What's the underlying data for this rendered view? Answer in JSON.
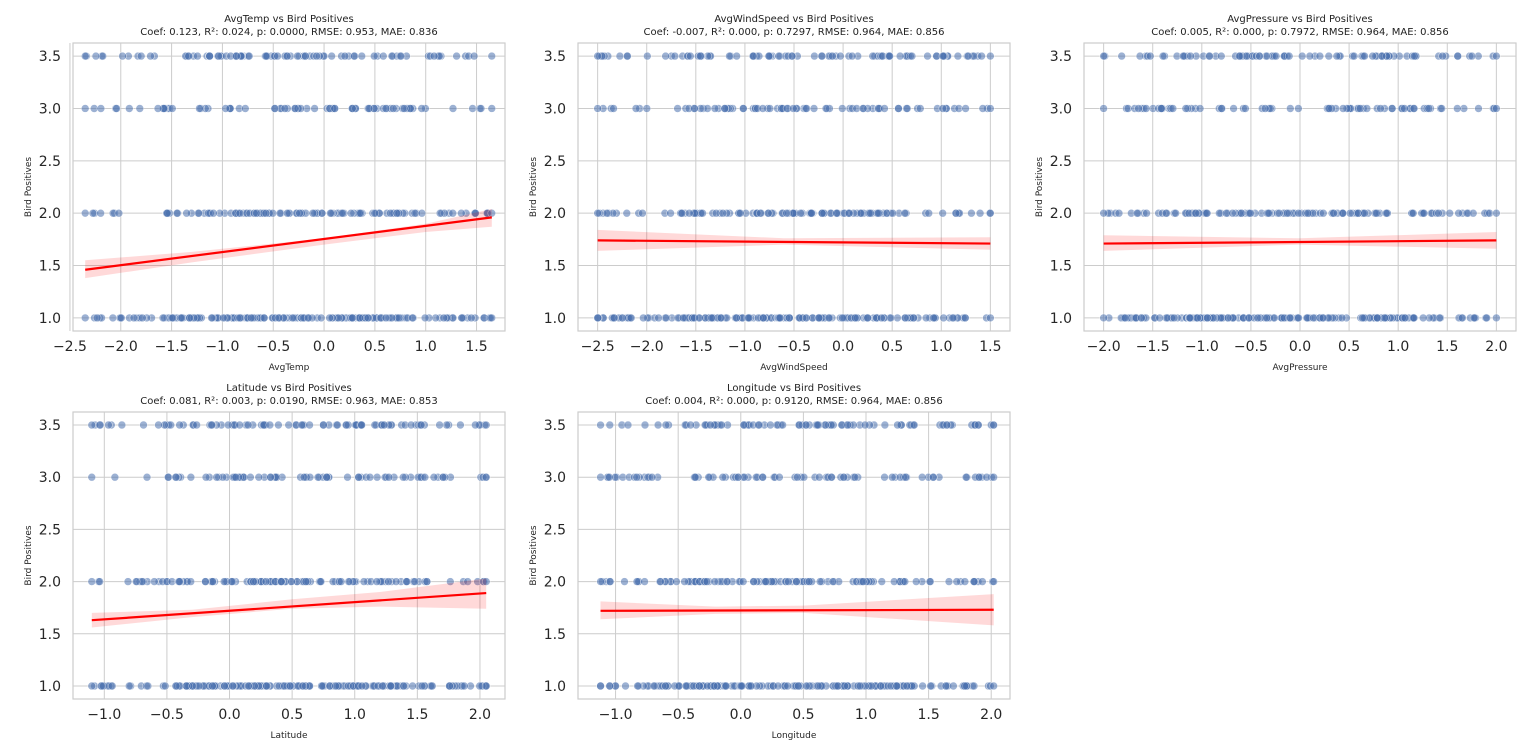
{
  "chart_data": [
    {
      "type": "scatter",
      "title": "AvgTemp vs Bird Positives",
      "subtitle": "Coef: 0.123, R²: 0.024, p: 0.0000, RMSE: 0.953, MAE: 0.836",
      "xlabel": "AvgTemp",
      "ylabel": "Bird Positives",
      "xlim": [
        -2.47,
        1.78
      ],
      "ylim": [
        0.875,
        3.625
      ],
      "xticks": [
        -2.5,
        -2.0,
        -1.5,
        -1.0,
        -0.5,
        0.0,
        0.5,
        1.0,
        1.5
      ],
      "xtick_labels": [
        "−2.5",
        "−2.0",
        "−1.5",
        "−1.0",
        "−0.5",
        "0.0",
        "0.5",
        "1.0",
        "1.5"
      ],
      "yticks": [
        1.0,
        1.5,
        2.0,
        2.5,
        3.0,
        3.5
      ],
      "ytick_labels": [
        "1.0",
        "1.5",
        "2.0",
        "2.5",
        "3.0",
        "3.5"
      ],
      "x_range": [
        -2.35,
        1.65
      ],
      "y_levels": [
        1.0,
        2.0,
        3.0,
        3.5
      ],
      "fit": {
        "x": [
          -2.35,
          1.65
        ],
        "y": [
          1.46,
          1.96
        ]
      },
      "ci": {
        "x": [
          -2.35,
          -1.3,
          0.0,
          1.0,
          1.65
        ],
        "lower": [
          1.38,
          1.53,
          1.7,
          1.82,
          1.87
        ],
        "upper": [
          1.55,
          1.63,
          1.76,
          1.9,
          2.04
        ]
      }
    },
    {
      "type": "scatter",
      "title": "AvgWindSpeed vs Bird Positives",
      "subtitle": "Coef: -0.007, R²: 0.000, p: 0.7297, RMSE: 0.964, MAE: 0.856",
      "xlabel": "AvgWindSpeed",
      "ylabel": "Bird Positives",
      "xlim": [
        -2.7,
        1.7
      ],
      "ylim": [
        0.875,
        3.625
      ],
      "xticks": [
        -2.5,
        -2.0,
        -1.5,
        -1.0,
        -0.5,
        0.0,
        0.5,
        1.0,
        1.5
      ],
      "xtick_labels": [
        "−2.5",
        "−2.0",
        "−1.5",
        "−1.0",
        "−0.5",
        "0.0",
        "0.5",
        "1.0",
        "1.5"
      ],
      "yticks": [
        1.0,
        1.5,
        2.0,
        2.5,
        3.0,
        3.5
      ],
      "ytick_labels": [
        "1.0",
        "1.5",
        "2.0",
        "2.5",
        "3.0",
        "3.5"
      ],
      "x_range": [
        -2.5,
        1.5
      ],
      "y_levels": [
        1.0,
        2.0,
        3.0,
        3.5
      ],
      "fit": {
        "x": [
          -2.5,
          1.5
        ],
        "y": [
          1.74,
          1.71
        ]
      },
      "ci": {
        "x": [
          -2.5,
          -0.6,
          1.5
        ],
        "lower": [
          1.64,
          1.7,
          1.65
        ],
        "upper": [
          1.84,
          1.76,
          1.77
        ]
      }
    },
    {
      "type": "scatter",
      "title": "AvgPressure vs Bird Positives",
      "subtitle": "Coef: 0.005, R²: 0.000, p: 0.7972, RMSE: 0.964, MAE: 0.856",
      "xlabel": "AvgPressure",
      "ylabel": "Bird Positives",
      "xlim": [
        -2.2,
        2.2
      ],
      "ylim": [
        0.875,
        3.625
      ],
      "xticks": [
        -2.0,
        -1.5,
        -1.0,
        -0.5,
        0.0,
        0.5,
        1.0,
        1.5,
        2.0
      ],
      "xtick_labels": [
        "−2.0",
        "−1.5",
        "−1.0",
        "−0.5",
        "0.0",
        "0.5",
        "1.0",
        "1.5",
        "2.0"
      ],
      "yticks": [
        1.0,
        1.5,
        2.0,
        2.5,
        3.0,
        3.5
      ],
      "ytick_labels": [
        "1.0",
        "1.5",
        "2.0",
        "2.5",
        "3.0",
        "3.5"
      ],
      "x_range": [
        -2.0,
        2.0
      ],
      "y_levels": [
        1.0,
        2.0,
        3.0,
        3.5
      ],
      "fit": {
        "x": [
          -2.0,
          2.0
        ],
        "y": [
          1.71,
          1.74
        ]
      },
      "ci": {
        "x": [
          -2.0,
          0.0,
          2.0
        ],
        "lower": [
          1.64,
          1.7,
          1.66
        ],
        "upper": [
          1.79,
          1.76,
          1.82
        ]
      }
    },
    {
      "type": "scatter",
      "title": "Latitude vs Bird Positives",
      "subtitle": "Coef: 0.081, R²: 0.003, p: 0.0190, RMSE: 0.963, MAE: 0.853",
      "xlabel": "Latitude",
      "ylabel": "Bird Positives",
      "xlim": [
        -1.25,
        2.2
      ],
      "ylim": [
        0.875,
        3.625
      ],
      "xticks": [
        -1.0,
        -0.5,
        0.0,
        0.5,
        1.0,
        1.5,
        2.0
      ],
      "xtick_labels": [
        "−1.0",
        "−0.5",
        "0.0",
        "0.5",
        "1.0",
        "1.5",
        "2.0"
      ],
      "yticks": [
        1.0,
        1.5,
        2.0,
        2.5,
        3.0,
        3.5
      ],
      "ytick_labels": [
        "1.0",
        "1.5",
        "2.0",
        "2.5",
        "3.0",
        "3.5"
      ],
      "x_range": [
        -1.1,
        2.05
      ],
      "y_levels": [
        1.0,
        2.0,
        3.0,
        3.5
      ],
      "fit": {
        "x": [
          -1.1,
          2.05
        ],
        "y": [
          1.63,
          1.89
        ]
      },
      "ci": {
        "x": [
          -1.1,
          -0.3,
          0.5,
          1.2,
          2.05
        ],
        "lower": [
          1.56,
          1.66,
          1.74,
          1.76,
          1.74
        ],
        "upper": [
          1.7,
          1.73,
          1.83,
          1.9,
          2.03
        ]
      }
    },
    {
      "type": "scatter",
      "title": "Longitude vs Bird Positives",
      "subtitle": "Coef: 0.004, R²: 0.000, p: 0.9120, RMSE: 0.964, MAE: 0.856",
      "xlabel": "Longitude",
      "ylabel": "Bird Positives",
      "xlim": [
        -1.3,
        2.15
      ],
      "ylim": [
        0.875,
        3.625
      ],
      "xticks": [
        -1.0,
        -0.5,
        0.0,
        0.5,
        1.0,
        1.5,
        2.0
      ],
      "xtick_labels": [
        "−1.0",
        "−0.5",
        "0.0",
        "0.5",
        "1.0",
        "1.5",
        "2.0"
      ],
      "yticks": [
        1.0,
        1.5,
        2.0,
        2.5,
        3.0,
        3.5
      ],
      "ytick_labels": [
        "1.0",
        "1.5",
        "2.0",
        "2.5",
        "3.0",
        "3.5"
      ],
      "x_range": [
        -1.12,
        2.02
      ],
      "y_levels": [
        1.0,
        2.0,
        3.0,
        3.5
      ],
      "fit": {
        "x": [
          -1.12,
          2.02
        ],
        "y": [
          1.72,
          1.73
        ]
      },
      "ci": {
        "x": [
          -1.12,
          -0.2,
          0.5,
          2.02
        ],
        "lower": [
          1.64,
          1.69,
          1.7,
          1.58
        ],
        "upper": [
          1.81,
          1.76,
          1.77,
          1.88
        ]
      }
    }
  ]
}
